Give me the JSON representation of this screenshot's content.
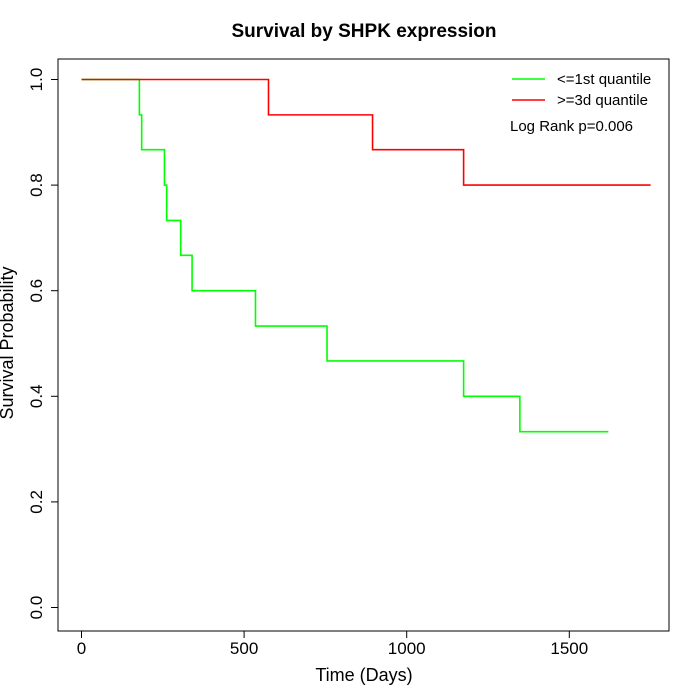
{
  "chart_data": {
    "type": "line",
    "step": true,
    "title": "Survival by SHPK expression",
    "xlabel": "Time (Days)",
    "ylabel": "Survival Probability",
    "xlim": [
      0,
      1800
    ],
    "ylim": [
      0,
      1
    ],
    "xticks": [
      0,
      500,
      1000,
      1500
    ],
    "yticks": [
      0.0,
      0.2,
      0.4,
      0.6,
      0.8,
      1.0
    ],
    "xtick_labels": [
      "0",
      "500",
      "1000",
      "1500"
    ],
    "ytick_labels": [
      "0.0",
      "0.2",
      "0.4",
      "0.6",
      "0.8",
      "1.0"
    ],
    "grid": false,
    "legend_position": "top-right",
    "annotation": "Log Rank p=0.006",
    "series": [
      {
        "name": "<=1st quantile",
        "color": "#00ff00",
        "x": [
          0,
          178,
          185,
          255,
          262,
          305,
          340,
          535,
          755,
          1175,
          1348,
          1620
        ],
        "y": [
          1.0,
          0.933,
          0.867,
          0.8,
          0.733,
          0.667,
          0.6,
          0.533,
          0.467,
          0.4,
          0.333,
          0.333
        ]
      },
      {
        "name": ">=3d quantile",
        "color": "#ff0000",
        "x": [
          0,
          575,
          895,
          1175,
          1750
        ],
        "y": [
          1.0,
          0.933,
          0.867,
          0.8,
          0.8
        ]
      }
    ]
  }
}
